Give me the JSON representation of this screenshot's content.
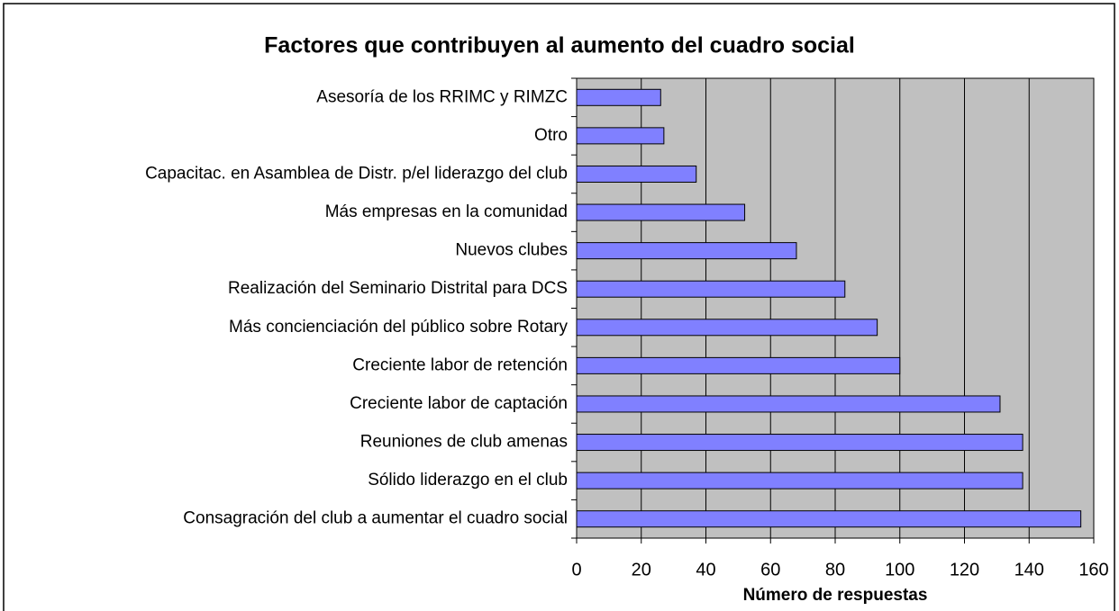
{
  "chart_data": {
    "type": "barh",
    "title": "Factores que contribuyen al aumento del cuadro social",
    "categories": [
      "Asesoría de los RRIMC y RIMZC",
      "Otro",
      "Capacitac. en Asamblea de Distr. p/el liderazgo del club",
      "Más empresas en la comunidad",
      "Nuevos clubes",
      "Realización del Seminario Distrital para DCS",
      "Más concienciación del público sobre Rotary",
      "Creciente labor de retención",
      "Creciente labor de captación",
      "Reuniones de club amenas",
      "Sólido liderazgo en el club",
      "Consagración del club a aumentar el cuadro social"
    ],
    "values": [
      26,
      27,
      37,
      52,
      68,
      83,
      93,
      100,
      131,
      138,
      138,
      156
    ],
    "color": "#8080ff",
    "xlim": [
      0,
      160
    ],
    "xticks": [
      0,
      20,
      40,
      60,
      80,
      100,
      120,
      140,
      160
    ],
    "grid": true,
    "xlabel": "Número de respuestas"
  }
}
